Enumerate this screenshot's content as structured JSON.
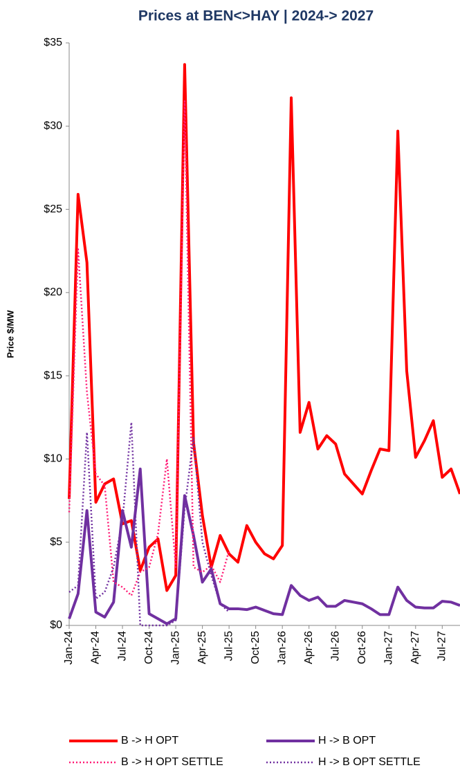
{
  "chart_data": {
    "type": "line",
    "title": "Prices at BEN<>HAY | 2024-> 2027",
    "y_label": "Price  $/MW",
    "categories": [
      "Jan-24",
      null,
      null,
      "Apr-24",
      null,
      null,
      "Jul-24",
      null,
      null,
      "Oct-24",
      null,
      null,
      "Jan-25",
      null,
      null,
      "Apr-25",
      null,
      null,
      "Jul-25",
      null,
      null,
      "Oct-25",
      null,
      null,
      "Jan-26",
      null,
      null,
      "Apr-26",
      null,
      null,
      "Jul-26",
      null,
      null,
      "Oct-26",
      null,
      null,
      "Jan-27",
      null,
      null,
      "Apr-27",
      null,
      null,
      "Jul-27",
      null,
      null
    ],
    "series": [
      {
        "name": "B -> H  OPT",
        "color": "#ff0000",
        "dash": "solid",
        "values": [
          7.6,
          25.9,
          21.8,
          7.4,
          8.5,
          8.8,
          6.1,
          6.3,
          3.3,
          4.7,
          5.2,
          2.1,
          3.0,
          33.7,
          11.0,
          6.6,
          3.5,
          5.4,
          4.3,
          3.8,
          6.0,
          5.0,
          4.3,
          4.0,
          4.8,
          31.7,
          11.6,
          13.4,
          10.6,
          11.4,
          10.9,
          9.1,
          8.5,
          7.9,
          9.3,
          10.6,
          10.5,
          29.7,
          15.3,
          10.1,
          11.1,
          12.3,
          8.9,
          9.4,
          7.9
        ]
      },
      {
        "name": "H -> B  OPT",
        "color": "#7030a0",
        "dash": "solid",
        "values": [
          0.4,
          1.9,
          6.9,
          0.8,
          0.5,
          1.4,
          6.9,
          4.7,
          9.4,
          0.7,
          0.4,
          0.1,
          0.4,
          7.8,
          5.4,
          2.6,
          3.4,
          1.3,
          1.0,
          1.0,
          0.95,
          1.1,
          0.9,
          0.7,
          0.65,
          2.4,
          1.8,
          1.5,
          1.7,
          1.15,
          1.15,
          1.5,
          1.4,
          1.3,
          1.0,
          0.65,
          0.65,
          2.3,
          1.5,
          1.1,
          1.05,
          1.05,
          1.45,
          1.4,
          1.2
        ]
      },
      {
        "name": "B -> H  OPT SETTLE",
        "color": "#ff1a75",
        "dash": "dotted",
        "values": [
          6.8,
          22.6,
          14.0,
          9.1,
          8.4,
          2.6,
          2.3,
          1.8,
          3.2,
          3.5,
          5.5,
          10.0,
          3.5,
          31.5,
          3.5,
          3.2,
          3.6,
          2.6,
          4.5,
          null,
          null,
          null,
          null,
          null,
          null,
          null,
          null,
          null,
          null,
          null,
          null,
          null,
          null,
          null,
          null,
          null,
          null,
          null,
          null,
          null,
          null,
          null,
          null,
          null,
          null
        ]
      },
      {
        "name": "H -> B  OPT SETTLE",
        "color": "#7030a0",
        "dash": "dotted",
        "values": [
          2.0,
          2.4,
          11.6,
          1.6,
          2.0,
          3.5,
          6.3,
          12.2,
          0,
          0,
          0,
          0,
          0.3,
          7.0,
          11.3,
          5.0,
          3.0,
          1.3,
          0.8,
          null,
          null,
          null,
          null,
          null,
          null,
          null,
          null,
          null,
          null,
          null,
          null,
          null,
          null,
          null,
          null,
          null,
          null,
          null,
          null,
          null,
          null,
          null,
          null,
          null,
          null
        ]
      }
    ],
    "ylim": [
      0,
      35
    ],
    "yticks": [
      {
        "value": 0,
        "label": "$0"
      },
      {
        "value": 5,
        "label": "$5"
      },
      {
        "value": 10,
        "label": "$10"
      },
      {
        "value": 15,
        "label": "$15"
      },
      {
        "value": 20,
        "label": "$20"
      },
      {
        "value": 25,
        "label": "$25"
      },
      {
        "value": 30,
        "label": "$30"
      },
      {
        "value": 35,
        "label": "$35"
      }
    ],
    "grid": false,
    "legend": "bottom"
  }
}
